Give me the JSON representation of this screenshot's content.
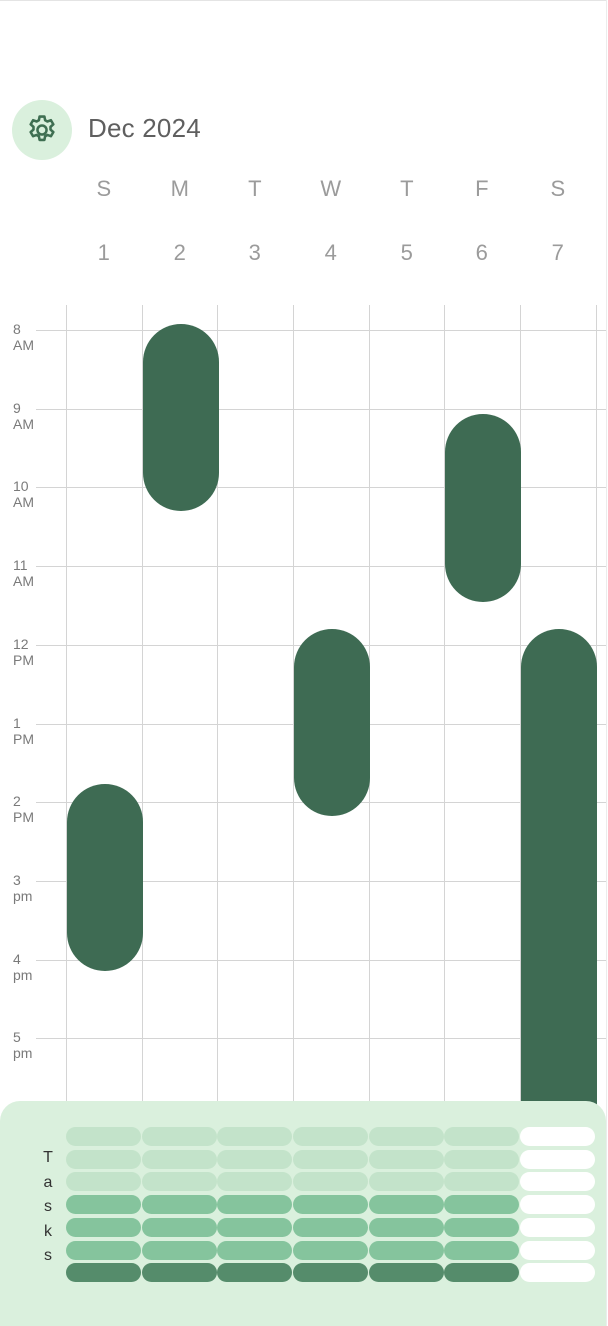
{
  "header": {
    "month_title": "Dec 2024",
    "settings_icon": "gear-icon"
  },
  "week": {
    "days": [
      {
        "dow": "S",
        "date": "1"
      },
      {
        "dow": "M",
        "date": "2"
      },
      {
        "dow": "T",
        "date": "3"
      },
      {
        "dow": "W",
        "date": "4"
      },
      {
        "dow": "T",
        "date": "5"
      },
      {
        "dow": "F",
        "date": "6"
      },
      {
        "dow": "S",
        "date": "7"
      }
    ]
  },
  "hours": [
    "8 AM",
    "9 AM",
    "10 AM",
    "11 AM",
    "12 PM",
    "1 PM",
    "2 PM",
    "3 pm",
    "4 pm",
    "5 pm"
  ],
  "events": [
    {
      "day_index": 1,
      "start_hour": 7.92,
      "end_hour": 10.3
    },
    {
      "day_index": 5,
      "start_hour": 9.07,
      "end_hour": 11.45
    },
    {
      "day_index": 3,
      "start_hour": 11.8,
      "end_hour": 14.18
    },
    {
      "day_index": 6,
      "start_hour": 11.8,
      "end_hour": 18.0
    },
    {
      "day_index": 0,
      "start_hour": 13.77,
      "end_hour": 16.15
    }
  ],
  "tasks": {
    "label": "Tasks",
    "rows": [
      [
        "light",
        "light",
        "light",
        "light",
        "light",
        "light",
        "white"
      ],
      [
        "light",
        "light",
        "light",
        "light",
        "light",
        "light",
        "white"
      ],
      [
        "light",
        "light",
        "light",
        "light",
        "light",
        "light",
        "white"
      ],
      [
        "mid",
        "mid",
        "mid",
        "mid",
        "mid",
        "mid",
        "white"
      ],
      [
        "mid",
        "mid",
        "mid",
        "mid",
        "mid",
        "mid",
        "white"
      ],
      [
        "mid",
        "mid",
        "mid",
        "mid",
        "mid",
        "mid",
        "white"
      ],
      [
        "dark",
        "dark",
        "dark",
        "dark",
        "dark",
        "dark",
        "white"
      ]
    ]
  },
  "colors": {
    "event": "#3e6b53",
    "settings_bg": "#daf0dd",
    "tasks_bg": "#daf0dd",
    "task_light": "#c3e3ca",
    "task_mid": "#85c49d",
    "task_dark": "#558c6b"
  }
}
